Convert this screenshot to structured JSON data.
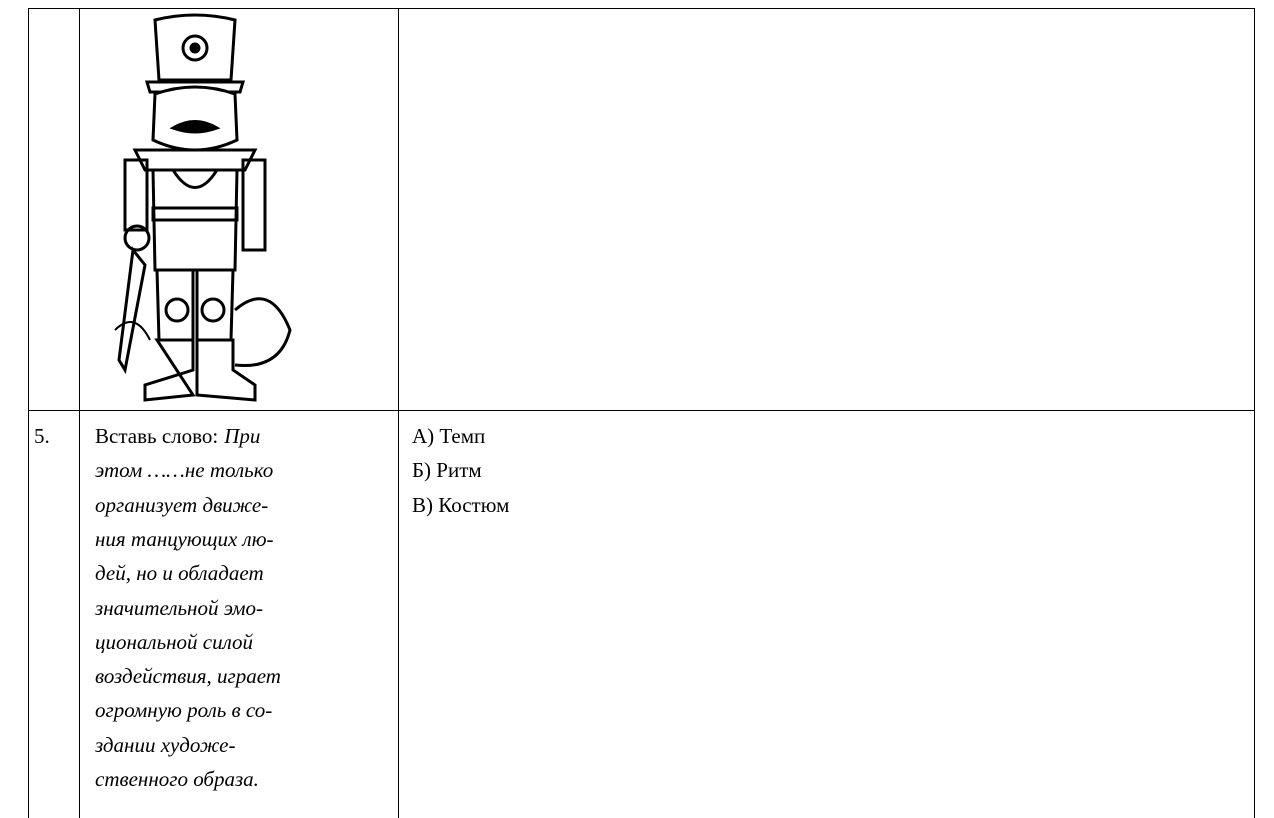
{
  "table": {
    "rows": [
      {
        "number": null,
        "question": null,
        "answers": []
      },
      {
        "number": "5.",
        "question": {
          "prefix": "Вставь слово:",
          "lines": [
            "При",
            "этом ……не только",
            "организует движе-",
            "ния танцующих лю-",
            "дей, но и обладает",
            "значительной эмо-",
            "циональной силой",
            "воздействия, играет",
            "огромную роль в со-",
            "здании художе-",
            "ственного образа."
          ]
        },
        "answers": [
          "А) Темп",
          "Б) Ритм",
          "В) Костюм"
        ]
      }
    ]
  }
}
